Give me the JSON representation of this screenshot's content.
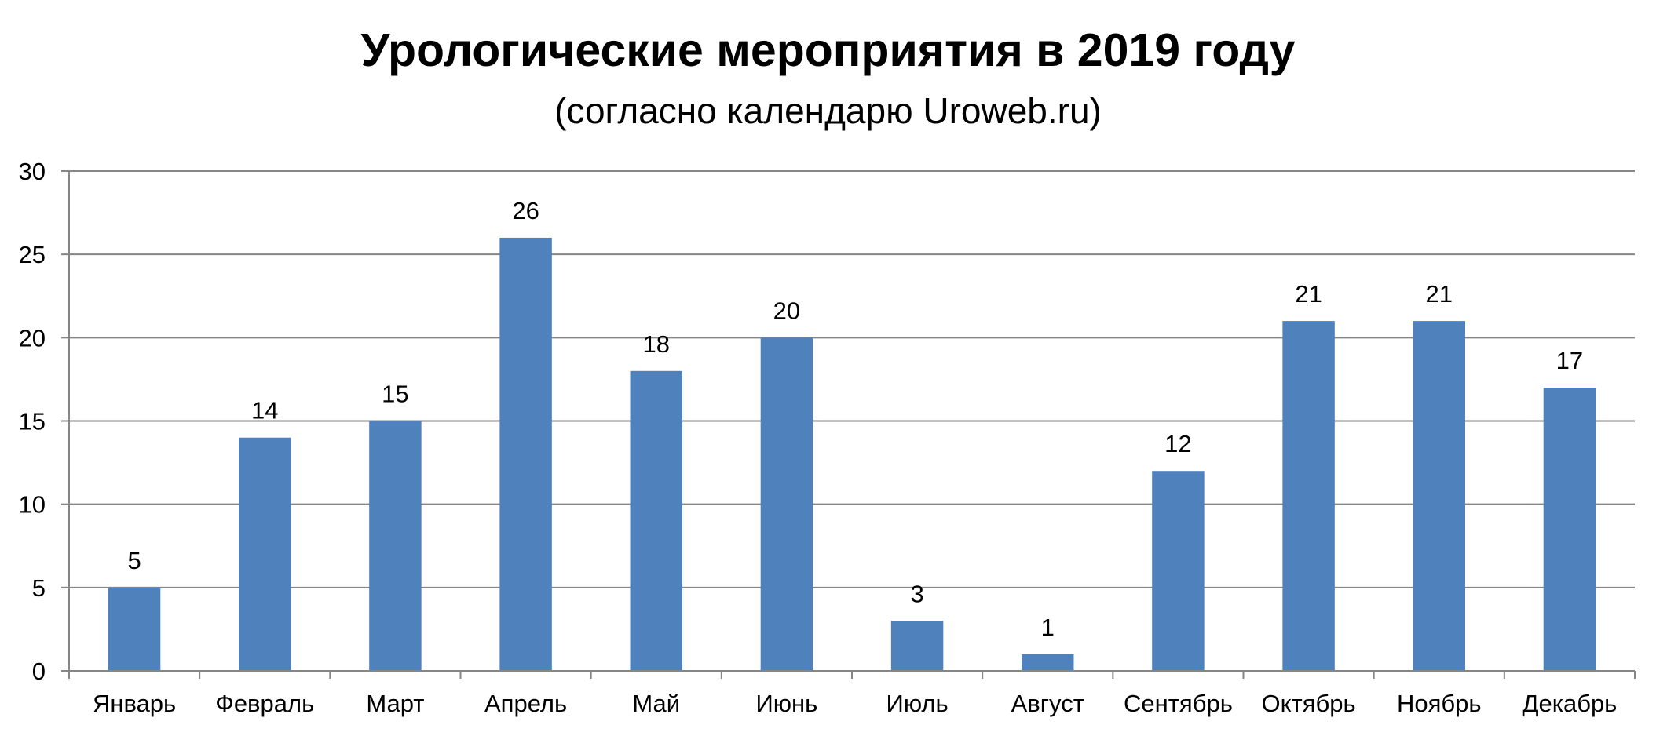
{
  "chart_data": {
    "type": "bar",
    "title": "Урологические мероприятия в 2019 году",
    "subtitle": "(согласно календарю Uroweb.ru)",
    "categories": [
      "Январь",
      "Февраль",
      "Март",
      "Апрель",
      "Май",
      "Июнь",
      "Июль",
      "Август",
      "Сентябрь",
      "Октябрь",
      "Ноябрь",
      "Декабрь"
    ],
    "values": [
      5,
      14,
      15,
      26,
      18,
      20,
      3,
      1,
      12,
      21,
      21,
      17
    ],
    "ylim": [
      0,
      30
    ],
    "yticks": [
      0,
      5,
      10,
      15,
      20,
      25,
      30
    ],
    "grid": true,
    "legend": "none",
    "bar_color": "#4F81BD",
    "grid_color": "#868686"
  }
}
